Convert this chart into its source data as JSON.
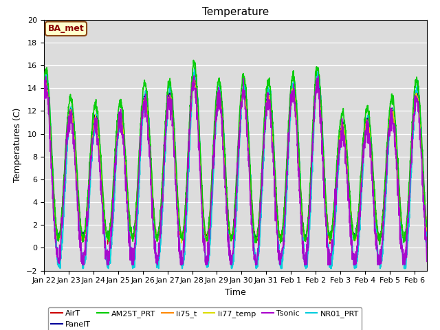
{
  "title": "Temperature",
  "ylabel": "Temperatures (C)",
  "xlabel": "Time",
  "annotation": "BA_met",
  "ylim": [
    -2,
    20
  ],
  "yticks": [
    -2,
    0,
    2,
    4,
    6,
    8,
    10,
    12,
    14,
    16,
    18,
    20
  ],
  "x_tick_labels": [
    "Jan 22",
    "Jan 23",
    "Jan 24",
    "Jan 25",
    "Jan 26",
    "Jan 27",
    "Jan 28",
    "Jan 29",
    "Jan 30",
    "Jan 31",
    "Feb 1",
    "Feb 2",
    "Feb 3",
    "Feb 4",
    "Feb 5",
    "Feb 6"
  ],
  "series": [
    {
      "name": "AirT",
      "color": "#cc0000",
      "lw": 1.0,
      "zorder": 3
    },
    {
      "name": "PanelT",
      "color": "#000099",
      "lw": 1.0,
      "zorder": 3
    },
    {
      "name": "AM25T_PRT",
      "color": "#00cc00",
      "lw": 1.2,
      "zorder": 4
    },
    {
      "name": "li75_t",
      "color": "#ff8800",
      "lw": 1.0,
      "zorder": 3
    },
    {
      "name": "li77_temp",
      "color": "#dddd00",
      "lw": 1.0,
      "zorder": 3
    },
    {
      "name": "Tsonic",
      "color": "#aa00cc",
      "lw": 1.2,
      "zorder": 5
    },
    {
      "name": "NR01_PRT",
      "color": "#00ccdd",
      "lw": 1.5,
      "zorder": 2
    }
  ],
  "bg_color": "#dcdcdc",
  "fig_bg": "#ffffff",
  "n_days": 15.5,
  "pts_per_day": 144
}
